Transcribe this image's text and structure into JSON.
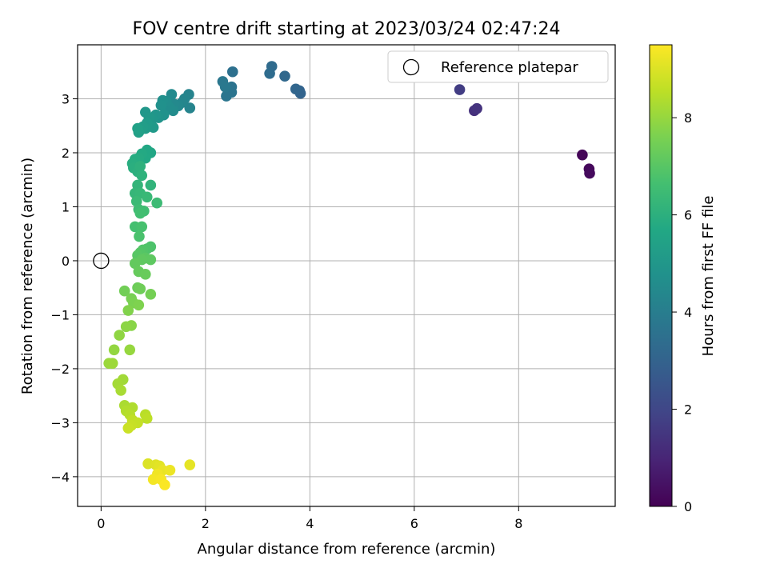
{
  "chart_data": {
    "type": "scatter",
    "title": "FOV centre drift starting at 2023/03/24 02:47:24",
    "xlabel": "Angular distance from reference (arcmin)",
    "ylabel": "Rotation from reference (arcmin)",
    "xlim": [
      -0.45,
      9.85
    ],
    "ylim": [
      -4.55,
      4.0
    ],
    "xticks": [
      0,
      2,
      4,
      6,
      8
    ],
    "yticks": [
      -4,
      -3,
      -2,
      -1,
      0,
      1,
      2,
      3
    ],
    "xtick_labels": [
      "0",
      "2",
      "4",
      "6",
      "8"
    ],
    "ytick_labels": [
      "−4",
      "−3",
      "−2",
      "−1",
      "0",
      "1",
      "2",
      "3"
    ],
    "grid": true,
    "legend": {
      "position": "upper-right",
      "label": "Reference platepar"
    },
    "reference_point": {
      "x": 0,
      "y": 0
    },
    "colorbar": {
      "label": "Hours from first FF file",
      "min": 0,
      "max": 9.5,
      "ticks": [
        0,
        2,
        4,
        6,
        8
      ],
      "tick_labels": [
        "0",
        "2",
        "4",
        "6",
        "8"
      ],
      "colormap": "viridis"
    },
    "points": [
      {
        "x": 9.22,
        "y": 1.96,
        "c": 0.1
      },
      {
        "x": 9.35,
        "y": 1.7,
        "c": 0.2
      },
      {
        "x": 9.36,
        "y": 1.62,
        "c": 0.25
      },
      {
        "x": 7.15,
        "y": 2.78,
        "c": 1.3
      },
      {
        "x": 7.2,
        "y": 2.82,
        "c": 1.4
      },
      {
        "x": 6.87,
        "y": 3.17,
        "c": 1.7
      },
      {
        "x": 3.8,
        "y": 3.15,
        "c": 3.0
      },
      {
        "x": 3.82,
        "y": 3.1,
        "c": 3.05
      },
      {
        "x": 3.73,
        "y": 3.18,
        "c": 3.1
      },
      {
        "x": 3.52,
        "y": 3.42,
        "c": 3.2
      },
      {
        "x": 3.27,
        "y": 3.6,
        "c": 3.3
      },
      {
        "x": 3.23,
        "y": 3.47,
        "c": 3.35
      },
      {
        "x": 2.52,
        "y": 3.5,
        "c": 3.5
      },
      {
        "x": 2.5,
        "y": 3.22,
        "c": 3.6
      },
      {
        "x": 2.5,
        "y": 3.12,
        "c": 3.65
      },
      {
        "x": 2.4,
        "y": 3.05,
        "c": 3.7
      },
      {
        "x": 2.33,
        "y": 3.32,
        "c": 3.75
      },
      {
        "x": 2.38,
        "y": 3.22,
        "c": 3.8
      },
      {
        "x": 1.68,
        "y": 3.08,
        "c": 4.2
      },
      {
        "x": 1.7,
        "y": 2.83,
        "c": 4.25
      },
      {
        "x": 1.6,
        "y": 3.0,
        "c": 4.3
      },
      {
        "x": 1.55,
        "y": 2.93,
        "c": 4.35
      },
      {
        "x": 1.48,
        "y": 2.87,
        "c": 4.4
      },
      {
        "x": 1.4,
        "y": 2.9,
        "c": 4.45
      },
      {
        "x": 1.35,
        "y": 3.08,
        "c": 4.5
      },
      {
        "x": 1.38,
        "y": 2.78,
        "c": 4.55
      },
      {
        "x": 1.3,
        "y": 2.85,
        "c": 4.6
      },
      {
        "x": 1.25,
        "y": 2.95,
        "c": 4.65
      },
      {
        "x": 1.18,
        "y": 2.97,
        "c": 4.7
      },
      {
        "x": 1.15,
        "y": 2.88,
        "c": 4.75
      },
      {
        "x": 1.2,
        "y": 2.7,
        "c": 4.8
      },
      {
        "x": 1.1,
        "y": 2.65,
        "c": 4.85
      },
      {
        "x": 1.05,
        "y": 2.7,
        "c": 4.9
      },
      {
        "x": 0.98,
        "y": 2.63,
        "c": 4.95
      },
      {
        "x": 0.85,
        "y": 2.75,
        "c": 5.0
      },
      {
        "x": 0.92,
        "y": 2.65,
        "c": 5.05
      },
      {
        "x": 1.0,
        "y": 2.47,
        "c": 5.1
      },
      {
        "x": 0.88,
        "y": 2.55,
        "c": 5.15
      },
      {
        "x": 0.85,
        "y": 2.45,
        "c": 5.2
      },
      {
        "x": 0.8,
        "y": 2.48,
        "c": 5.25
      },
      {
        "x": 0.75,
        "y": 2.42,
        "c": 5.3
      },
      {
        "x": 0.72,
        "y": 2.38,
        "c": 5.35
      },
      {
        "x": 0.7,
        "y": 2.45,
        "c": 5.4
      },
      {
        "x": 0.95,
        "y": 2.0,
        "c": 5.6
      },
      {
        "x": 0.88,
        "y": 2.05,
        "c": 5.65
      },
      {
        "x": 0.85,
        "y": 1.9,
        "c": 5.7
      },
      {
        "x": 0.78,
        "y": 1.98,
        "c": 5.75
      },
      {
        "x": 0.72,
        "y": 1.9,
        "c": 5.8
      },
      {
        "x": 0.65,
        "y": 1.88,
        "c": 5.85
      },
      {
        "x": 0.6,
        "y": 1.8,
        "c": 5.9
      },
      {
        "x": 0.62,
        "y": 1.72,
        "c": 5.95
      },
      {
        "x": 0.7,
        "y": 1.65,
        "c": 6.0
      },
      {
        "x": 0.75,
        "y": 1.75,
        "c": 6.05
      },
      {
        "x": 0.78,
        "y": 1.58,
        "c": 6.1
      },
      {
        "x": 0.95,
        "y": 1.4,
        "c": 6.15
      },
      {
        "x": 0.7,
        "y": 1.4,
        "c": 6.2
      },
      {
        "x": 0.65,
        "y": 1.25,
        "c": 6.25
      },
      {
        "x": 0.75,
        "y": 1.25,
        "c": 6.3
      },
      {
        "x": 0.88,
        "y": 1.18,
        "c": 6.35
      },
      {
        "x": 0.68,
        "y": 1.1,
        "c": 6.4
      },
      {
        "x": 1.07,
        "y": 1.07,
        "c": 6.45
      },
      {
        "x": 0.72,
        "y": 0.95,
        "c": 6.5
      },
      {
        "x": 0.82,
        "y": 0.92,
        "c": 6.55
      },
      {
        "x": 0.75,
        "y": 0.88,
        "c": 6.6
      },
      {
        "x": 0.65,
        "y": 0.63,
        "c": 6.65
      },
      {
        "x": 0.78,
        "y": 0.63,
        "c": 6.7
      },
      {
        "x": 0.73,
        "y": 0.45,
        "c": 6.75
      },
      {
        "x": 0.95,
        "y": 0.26,
        "c": 6.8
      },
      {
        "x": 0.88,
        "y": 0.22,
        "c": 6.85
      },
      {
        "x": 0.8,
        "y": 0.2,
        "c": 6.9
      },
      {
        "x": 0.75,
        "y": 0.15,
        "c": 6.95
      },
      {
        "x": 0.7,
        "y": 0.1,
        "c": 7.0
      },
      {
        "x": 0.85,
        "y": 0.05,
        "c": 7.05
      },
      {
        "x": 0.95,
        "y": 0.02,
        "c": 7.1
      },
      {
        "x": 0.78,
        "y": 0.02,
        "c": 7.15
      },
      {
        "x": 0.65,
        "y": -0.05,
        "c": 7.2
      },
      {
        "x": 0.72,
        "y": -0.2,
        "c": 7.25
      },
      {
        "x": 0.85,
        "y": -0.25,
        "c": 7.3
      },
      {
        "x": 0.7,
        "y": -0.5,
        "c": 7.35
      },
      {
        "x": 0.75,
        "y": -0.52,
        "c": 7.4
      },
      {
        "x": 0.45,
        "y": -0.56,
        "c": 7.45
      },
      {
        "x": 0.95,
        "y": -0.62,
        "c": 7.5
      },
      {
        "x": 0.58,
        "y": -0.7,
        "c": 7.55
      },
      {
        "x": 0.62,
        "y": -0.78,
        "c": 7.6
      },
      {
        "x": 0.72,
        "y": -0.82,
        "c": 7.65
      },
      {
        "x": 0.52,
        "y": -0.92,
        "c": 7.7
      },
      {
        "x": 0.58,
        "y": -1.2,
        "c": 7.8
      },
      {
        "x": 0.48,
        "y": -1.22,
        "c": 7.85
      },
      {
        "x": 0.35,
        "y": -1.38,
        "c": 7.9
      },
      {
        "x": 0.25,
        "y": -1.65,
        "c": 7.95
      },
      {
        "x": 0.55,
        "y": -1.65,
        "c": 8.0
      },
      {
        "x": 0.15,
        "y": -1.9,
        "c": 8.05
      },
      {
        "x": 0.22,
        "y": -1.9,
        "c": 8.1
      },
      {
        "x": 0.42,
        "y": -2.2,
        "c": 8.15
      },
      {
        "x": 0.32,
        "y": -2.28,
        "c": 8.2
      },
      {
        "x": 0.38,
        "y": -2.4,
        "c": 8.25
      },
      {
        "x": 0.45,
        "y": -2.68,
        "c": 8.3
      },
      {
        "x": 0.6,
        "y": -2.72,
        "c": 8.35
      },
      {
        "x": 0.48,
        "y": -2.78,
        "c": 8.4
      },
      {
        "x": 0.55,
        "y": -2.85,
        "c": 8.45
      },
      {
        "x": 0.85,
        "y": -2.85,
        "c": 8.5
      },
      {
        "x": 0.88,
        "y": -2.92,
        "c": 8.55
      },
      {
        "x": 0.6,
        "y": -2.95,
        "c": 8.6
      },
      {
        "x": 0.7,
        "y": -3.0,
        "c": 8.65
      },
      {
        "x": 0.58,
        "y": -3.05,
        "c": 8.7
      },
      {
        "x": 0.52,
        "y": -3.1,
        "c": 8.75
      },
      {
        "x": 0.9,
        "y": -3.76,
        "c": 9.0
      },
      {
        "x": 1.05,
        "y": -3.78,
        "c": 9.05
      },
      {
        "x": 1.12,
        "y": -3.8,
        "c": 9.1
      },
      {
        "x": 1.7,
        "y": -3.78,
        "c": 9.15
      },
      {
        "x": 1.18,
        "y": -3.88,
        "c": 9.2
      },
      {
        "x": 1.32,
        "y": -3.88,
        "c": 9.25
      },
      {
        "x": 1.08,
        "y": -3.95,
        "c": 9.3
      },
      {
        "x": 1.0,
        "y": -4.05,
        "c": 9.35
      },
      {
        "x": 1.15,
        "y": -4.05,
        "c": 9.4
      },
      {
        "x": 1.22,
        "y": -4.15,
        "c": 9.45
      }
    ]
  }
}
